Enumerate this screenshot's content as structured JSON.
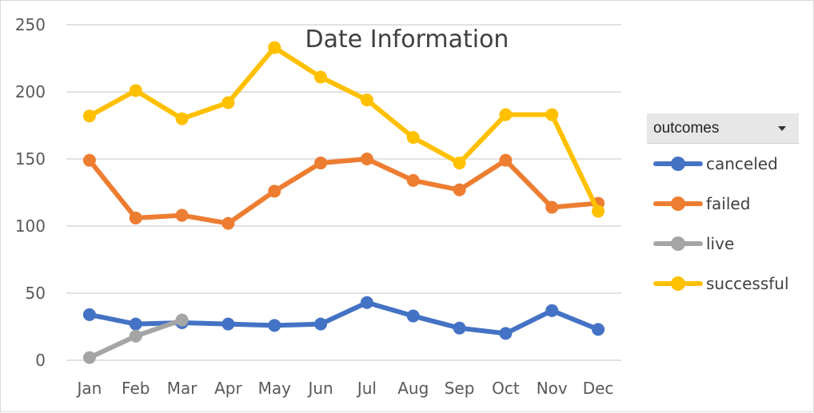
{
  "chart_data": {
    "type": "line",
    "title": "Date Information",
    "categories": [
      "Jan",
      "Feb",
      "Mar",
      "Apr",
      "May",
      "Jun",
      "Jul",
      "Aug",
      "Sep",
      "Oct",
      "Nov",
      "Dec"
    ],
    "ylim": [
      0,
      250
    ],
    "yticks": [
      0,
      50,
      100,
      150,
      200,
      250
    ],
    "grid": true,
    "legend_position": "right",
    "legend_title": "outcomes",
    "series": [
      {
        "name": "canceled",
        "color": "#4472c4",
        "values": [
          34,
          27,
          28,
          27,
          26,
          27,
          43,
          33,
          24,
          20,
          37,
          23
        ]
      },
      {
        "name": "failed",
        "color": "#ed7d31",
        "values": [
          149,
          106,
          108,
          102,
          126,
          147,
          150,
          134,
          127,
          149,
          114,
          117
        ]
      },
      {
        "name": "live",
        "color": "#a5a5a5",
        "values": [
          2,
          18,
          30,
          null,
          null,
          null,
          null,
          null,
          null,
          null,
          null,
          null
        ]
      },
      {
        "name": "successful",
        "color": "#ffc000",
        "values": [
          182,
          201,
          180,
          192,
          233,
          211,
          194,
          166,
          147,
          183,
          183,
          111
        ]
      }
    ]
  }
}
